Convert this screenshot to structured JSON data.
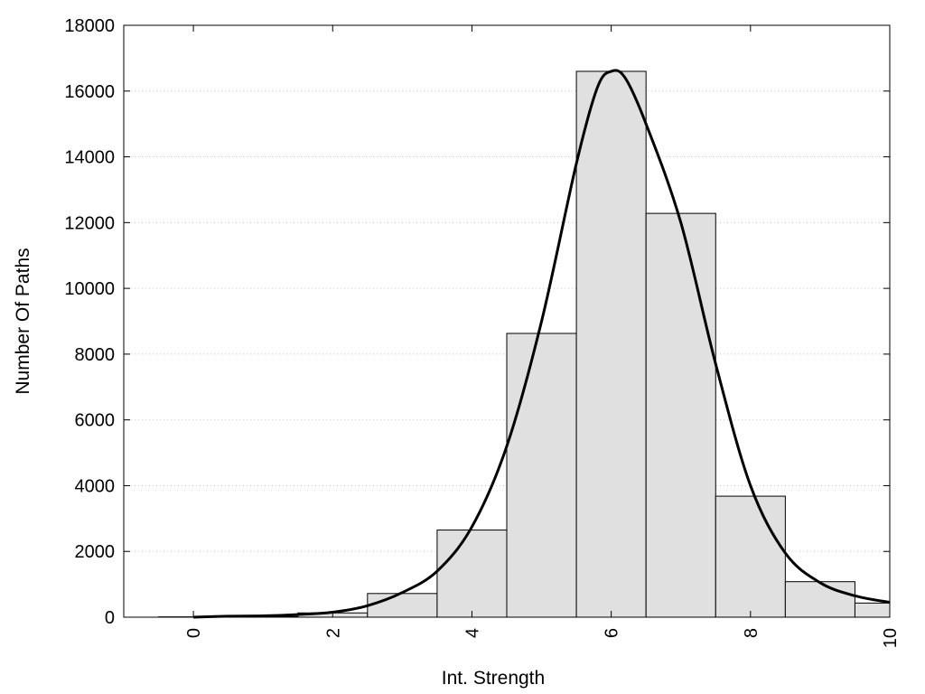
{
  "chart_data": {
    "type": "bar",
    "title": "",
    "xlabel": "Int. Strength",
    "ylabel": "Number Of Paths",
    "xlim": [
      -1,
      10
    ],
    "ylim": [
      0,
      18000
    ],
    "grid": "horizontal dotted",
    "legend": "none",
    "x_ticks": [
      0,
      2,
      4,
      6,
      8,
      10
    ],
    "y_ticks": [
      0,
      2000,
      4000,
      6000,
      8000,
      10000,
      12000,
      14000,
      16000,
      18000
    ],
    "series": [
      {
        "kind": "histogram",
        "bin_width": 1,
        "bin_centers": [
          0,
          1,
          2,
          3,
          4,
          5,
          6,
          7,
          8,
          9,
          10
        ],
        "values": [
          10,
          20,
          130,
          720,
          2650,
          8630,
          16600,
          12280,
          3680,
          1080,
          430
        ],
        "fill": "#e0e0e0",
        "stroke": "#000000"
      },
      {
        "kind": "curve",
        "x": [
          0,
          0.5,
          1,
          1.5,
          2,
          2.5,
          3,
          3.5,
          4,
          4.5,
          5,
          5.5,
          5.8,
          6,
          6.2,
          6.5,
          7,
          7.5,
          8,
          8.5,
          9,
          9.5,
          10
        ],
        "values": [
          0,
          30,
          40,
          80,
          150,
          350,
          750,
          1400,
          2750,
          5200,
          9000,
          13800,
          16100,
          16600,
          16400,
          15000,
          12000,
          7700,
          4000,
          1950,
          1050,
          650,
          450
        ],
        "stroke": "#000000"
      }
    ]
  }
}
